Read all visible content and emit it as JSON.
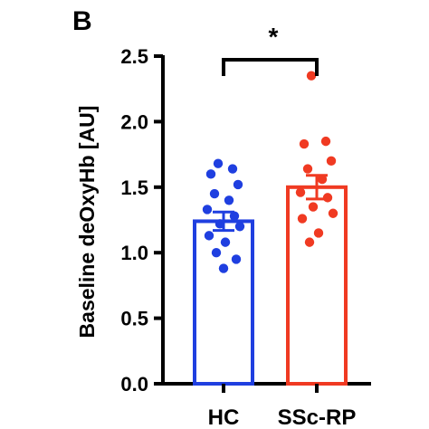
{
  "panel_label": "B",
  "chart_data": {
    "type": "bar",
    "title": "",
    "ylabel": "Baseline deOxyHb [AU]",
    "xlabel": "",
    "categories": [
      "HC",
      "SSc-RP"
    ],
    "ylim": [
      0,
      2.5
    ],
    "yticks": [
      "0.0",
      "0.5",
      "1.0",
      "1.5",
      "2.0",
      "2.5"
    ],
    "grid": false,
    "series": [
      {
        "mean": 1.24,
        "sem": 0.07,
        "color": "#1f3fe0",
        "points": [
          1.68,
          1.64,
          1.6,
          1.52,
          1.45,
          1.4,
          1.33,
          1.28,
          1.22,
          1.2,
          1.13,
          1.08,
          1.0,
          0.95,
          0.88
        ]
      },
      {
        "mean": 1.5,
        "sem": 0.09,
        "color": "#f03a22",
        "points": [
          2.35,
          1.85,
          1.83,
          1.7,
          1.64,
          1.56,
          1.46,
          1.42,
          1.35,
          1.3,
          1.26,
          1.15,
          1.08
        ]
      }
    ],
    "annotation": "*"
  }
}
